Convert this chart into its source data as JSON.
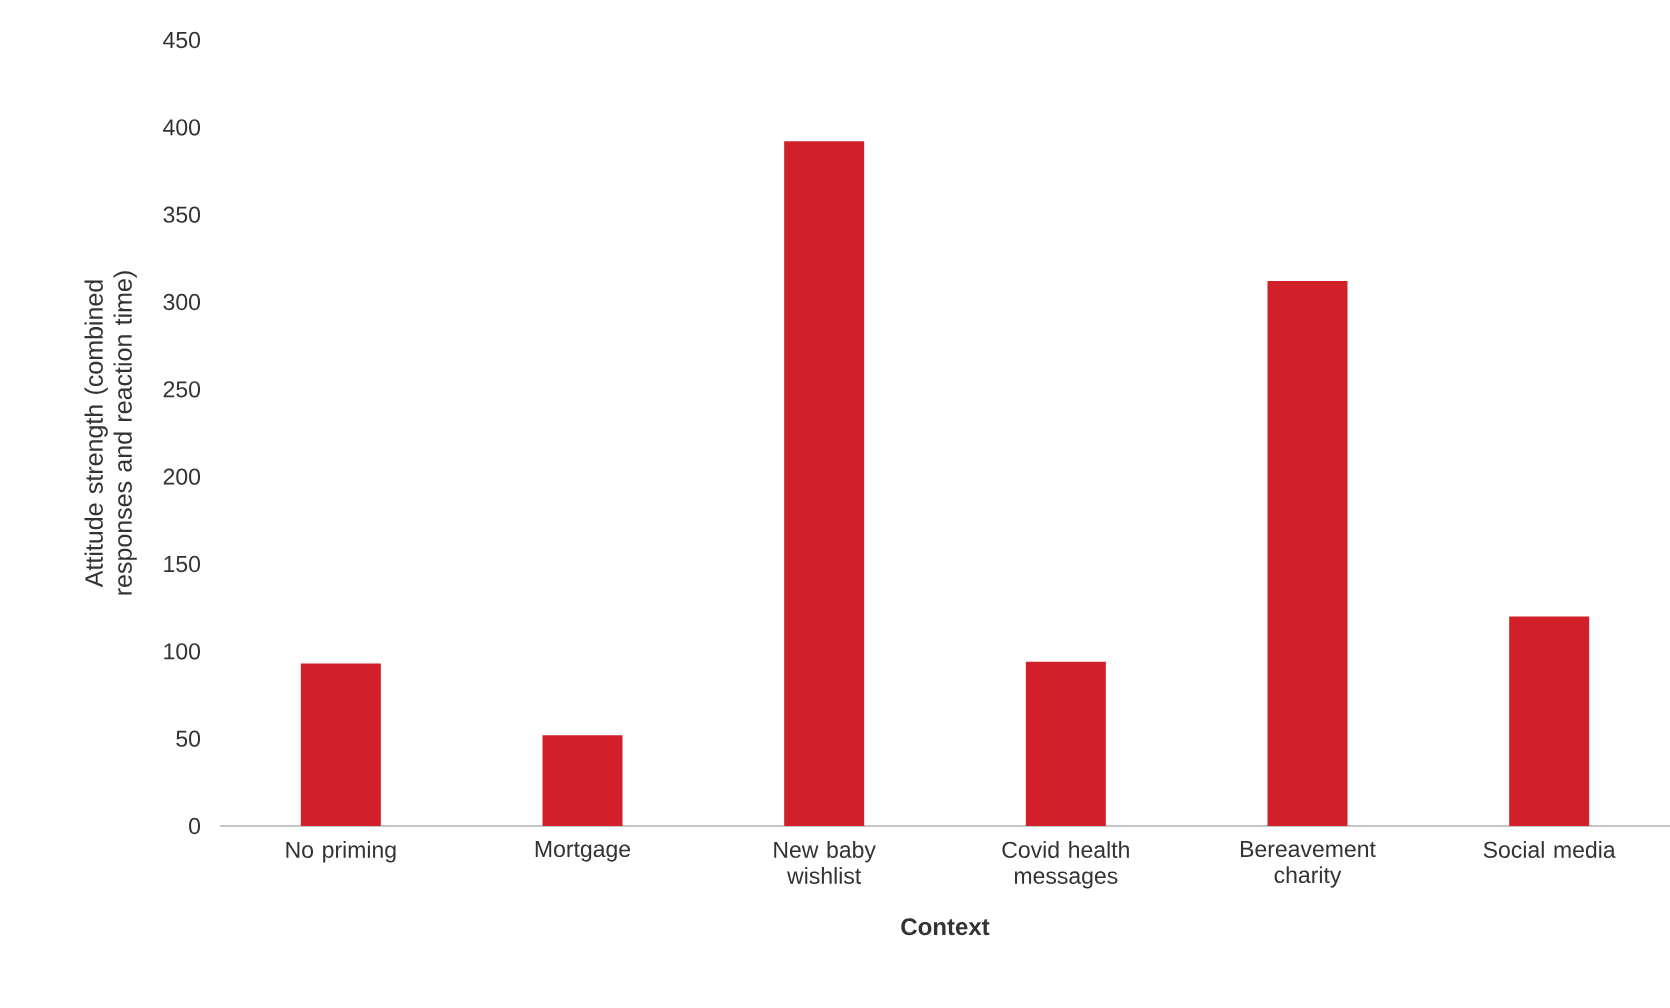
{
  "chart_data": {
    "type": "bar",
    "xlabel": "Context",
    "ylabel": "Attitude strength (combined responses and reaction time)",
    "categories": [
      "No priming",
      "Mortgage",
      "New baby wishlist",
      "Covid health messages",
      "Bereavement charity",
      "Social media"
    ],
    "values": [
      93,
      52,
      392,
      94,
      312,
      120
    ],
    "color": "#d2202a",
    "ylim": [
      0,
      450
    ],
    "yticks": [
      0,
      50,
      100,
      150,
      200,
      250,
      300,
      350,
      400,
      450
    ]
  }
}
